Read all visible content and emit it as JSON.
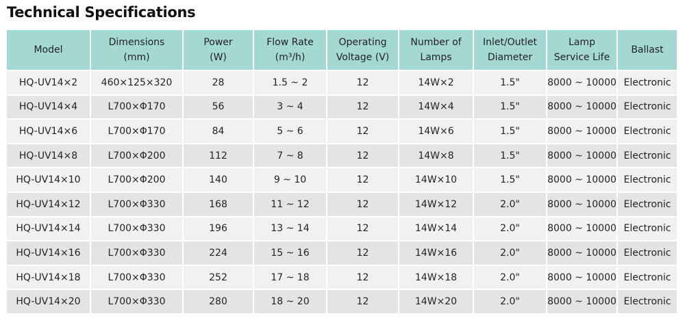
{
  "header": {
    "title": "Technical Specifications"
  },
  "table": {
    "columns": [
      [
        "Model"
      ],
      [
        "Dimensions",
        "(mm)"
      ],
      [
        "Power",
        "(W)"
      ],
      [
        "Flow Rate",
        "(m³/h)"
      ],
      [
        "Operating",
        "Voltage (V)"
      ],
      [
        "Number of",
        "Lamps"
      ],
      [
        "Inlet/Outlet",
        "Diameter"
      ],
      [
        "Lamp",
        "Service Life"
      ],
      [
        "Ballast"
      ]
    ],
    "rows": [
      [
        "HQ-UV14×2",
        "460×125×320",
        "28",
        "1.5 ~ 2",
        "12",
        "14W×2",
        "1.5\"",
        "8000 ~ 10000",
        "Electronic"
      ],
      [
        "HQ-UV14×4",
        "L700×Φ170",
        "56",
        "3 ~ 4",
        "12",
        "14W×4",
        "1.5\"",
        "8000 ~ 10000",
        "Electronic"
      ],
      [
        "HQ-UV14×6",
        "L700×Φ170",
        "84",
        "5 ~ 6",
        "12",
        "14W×6",
        "1.5\"",
        "8000 ~ 10000",
        "Electronic"
      ],
      [
        "HQ-UV14×8",
        "L700×Φ200",
        "112",
        "7 ~ 8",
        "12",
        "14W×8",
        "1.5\"",
        "8000 ~ 10000",
        "Electronic"
      ],
      [
        "HQ-UV14×10",
        "L700×Φ200",
        "140",
        "9 ~ 10",
        "12",
        "14W×10",
        "1.5\"",
        "8000 ~ 10000",
        "Electronic"
      ],
      [
        "HQ-UV14×12",
        "L700×Φ330",
        "168",
        "11 ~ 12",
        "12",
        "14W×12",
        "2.0\"",
        "8000 ~ 10000",
        "Electronic"
      ],
      [
        "HQ-UV14×14",
        "L700×Φ330",
        "196",
        "13 ~ 14",
        "12",
        "14W×14",
        "2.0\"",
        "8000 ~ 10000",
        "Electronic"
      ],
      [
        "HQ-UV14×16",
        "L700×Φ330",
        "224",
        "15 ~ 16",
        "12",
        "14W×16",
        "2.0\"",
        "8000 ~ 10000",
        "Electronic"
      ],
      [
        "HQ-UV14×18",
        "L700×Φ330",
        "252",
        "17 ~ 18",
        "12",
        "14W×18",
        "2.0\"",
        "8000 ~ 10000",
        "Electronic"
      ],
      [
        "HQ-UV14×20",
        "L700×Φ330",
        "280",
        "18 ~ 20",
        "12",
        "14W×20",
        "2.0\"",
        "8000 ~ 10000",
        "Electronic"
      ]
    ]
  }
}
